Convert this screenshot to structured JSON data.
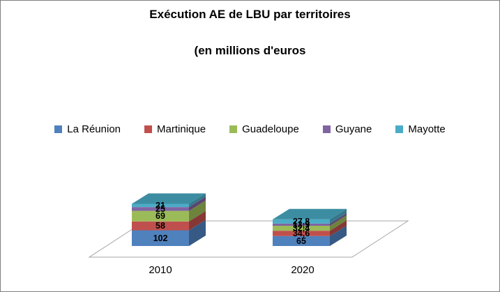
{
  "title": {
    "line1": "Exécution AE de LBU par territoires",
    "line2": "(en millions d'euros"
  },
  "chart_data": {
    "type": "bar",
    "subtype": "stacked-3d",
    "title": "Exécution AE de LBU par territoires (en millions d'euros",
    "legend_position": "top",
    "value_labels": true,
    "categories": [
      "2010",
      "2020"
    ],
    "series": [
      {
        "name": "La Réunion",
        "color": "#4F81BD",
        "values": [
          102,
          65
        ],
        "labels": [
          "102",
          "65"
        ]
      },
      {
        "name": "Martinique",
        "color": "#C0504D",
        "values": [
          58,
          34.6
        ],
        "labels": [
          "58",
          "34,6"
        ]
      },
      {
        "name": "Guadeloupe",
        "color": "#9BBB59",
        "values": [
          69,
          32.4
        ],
        "labels": [
          "69",
          "32,4"
        ]
      },
      {
        "name": "Guyane",
        "color": "#8064A2",
        "values": [
          25,
          13.9
        ],
        "labels": [
          "25",
          "13,9"
        ]
      },
      {
        "name": "Mayotte",
        "color": "#4BACC6",
        "values": [
          21,
          27.8
        ],
        "labels": [
          "21",
          "27,8"
        ]
      }
    ]
  },
  "colors": {
    "border": "#7f7f7f",
    "floor_stroke": "#a6a6a6",
    "label_color": "#000000"
  }
}
